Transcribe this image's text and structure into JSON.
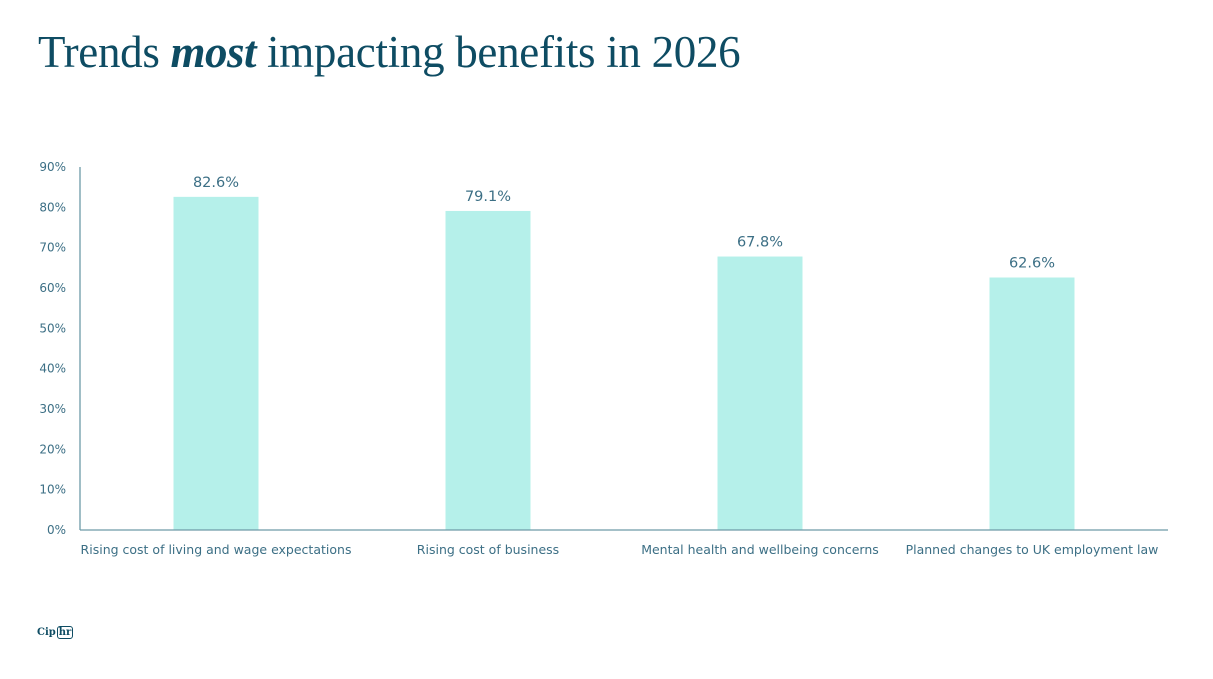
{
  "title": {
    "prefix": "Trends ",
    "emphasis": "most",
    "suffix": " impacting benefits in 2026"
  },
  "logo": {
    "part1": "Cip",
    "part2": "hr"
  },
  "colors": {
    "bar": "#b5f0ea",
    "axis": "#6d9aa8",
    "text": "#3c6f85",
    "title": "#0e4c63"
  },
  "chart_data": {
    "type": "bar",
    "title": "Trends most impacting benefits in 2026",
    "xlabel": "",
    "ylabel": "",
    "ylim": [
      0,
      90
    ],
    "yticks": [
      0,
      10,
      20,
      30,
      40,
      50,
      60,
      70,
      80,
      90
    ],
    "ytick_labels": [
      "0%",
      "10%",
      "20%",
      "30%",
      "40%",
      "50%",
      "60%",
      "70%",
      "80%",
      "90%"
    ],
    "categories": [
      "Rising cost of living and wage expectations",
      "Rising cost of business",
      "Mental health and wellbeing concerns",
      "Planned changes to UK employment law"
    ],
    "values": [
      82.6,
      79.1,
      67.8,
      62.6
    ],
    "data_labels": [
      "82.6%",
      "79.1%",
      "67.8%",
      "62.6%"
    ],
    "grid": false,
    "legend": "none"
  }
}
